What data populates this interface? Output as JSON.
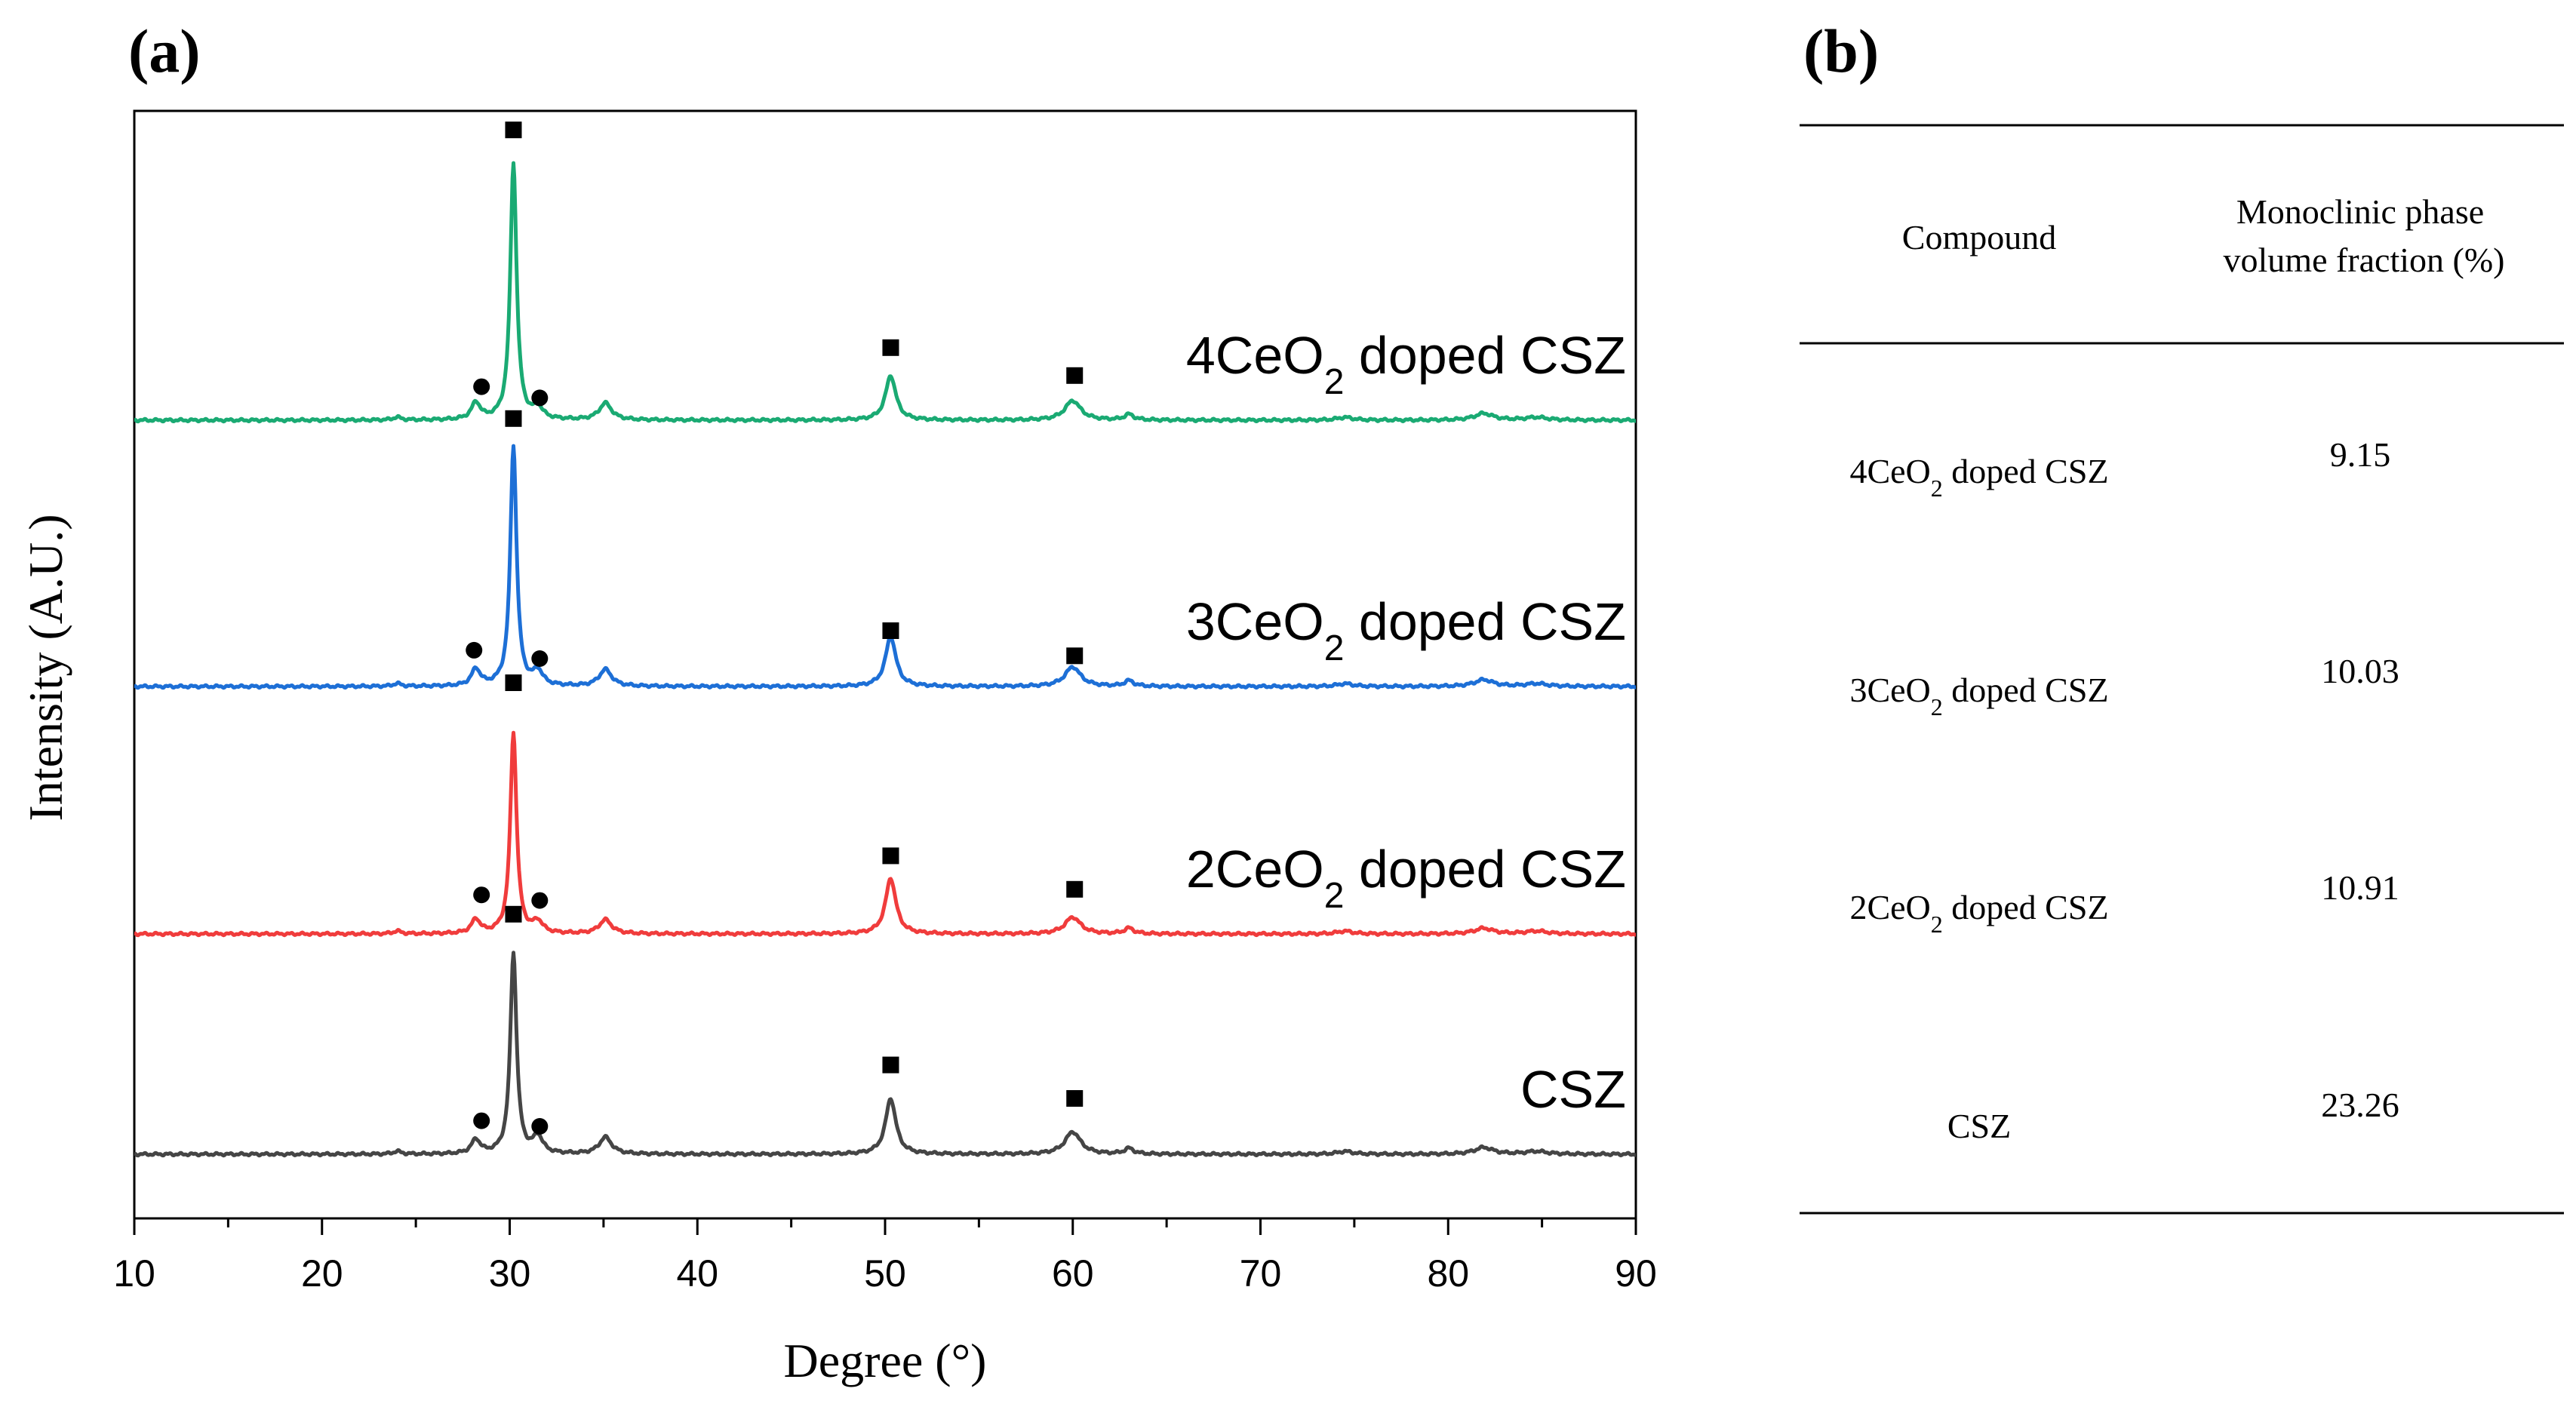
{
  "panel_a_label": "(a)",
  "panel_b_label": "(b)",
  "chart_data": {
    "type": "line",
    "xlabel": "Degree (°)",
    "ylabel": "Intensity (A.U.)",
    "xlim": [
      10,
      90
    ],
    "xticks": [
      "10",
      "20",
      "30",
      "40",
      "50",
      "60",
      "70",
      "80",
      "90"
    ],
    "y_ticks_shown": false,
    "peaks": [
      {
        "pos": 28.2,
        "w": 0.28,
        "k": "m"
      },
      {
        "pos": 30.2,
        "w": 0.2,
        "k": "main"
      },
      {
        "pos": 31.5,
        "w": 0.3,
        "k": "m2"
      },
      {
        "pos": 35.1,
        "w": 0.4,
        "k": "p35"
      },
      {
        "pos": 50.3,
        "w": 0.33,
        "k": "p50"
      },
      {
        "pos": 60.0,
        "w": 0.5,
        "k": "p60"
      },
      {
        "pos": 63.0,
        "w": 0.3,
        "k": "p63"
      },
      {
        "pos": 81.9,
        "w": 0.6,
        "k": "p82"
      },
      {
        "pos": 24.0,
        "w": 0.25,
        "k": "p24"
      },
      {
        "pos": 74.5,
        "w": 0.5,
        "k": "p74"
      },
      {
        "pos": 84.7,
        "w": 0.7,
        "k": "p85"
      }
    ],
    "series": [
      {
        "name": "4CeO2 doped CSZ",
        "label_main": "4CeO",
        "label_sub": "2",
        "label_rest": " doped CSZ",
        "color": "#1aaa73",
        "baseline": 0.7,
        "heights": {
          "m": 0.3,
          "main": 4.6,
          "m2": 0.2,
          "p35": 0.3,
          "p50": 0.8,
          "p60": 0.35,
          "p63": 0.1,
          "p82": 0.12,
          "p24": 0.05,
          "p74": 0.05,
          "p85": 0.05
        },
        "markers": [
          {
            "shape": "circle",
            "x": 28.5,
            "y_above": 0.6
          },
          {
            "shape": "square",
            "x": 30.2,
            "y_above": 5.2
          },
          {
            "shape": "circle",
            "x": 31.6,
            "y_above": 0.4
          },
          {
            "shape": "square",
            "x": 50.3,
            "y_above": 1.3
          },
          {
            "shape": "square",
            "x": 60.1,
            "y_above": 0.8
          }
        ]
      },
      {
        "name": "3CeO2 doped CSZ",
        "label_main": "3CeO",
        "label_sub": "2",
        "label_rest": " doped CSZ",
        "color": "#1d6fd6",
        "baseline": 0.7,
        "heights": {
          "m": 0.3,
          "main": 4.3,
          "m2": 0.25,
          "p35": 0.3,
          "p50": 0.9,
          "p60": 0.35,
          "p63": 0.1,
          "p82": 0.12,
          "p24": 0.05,
          "p74": 0.05,
          "p85": 0.05
        },
        "markers": [
          {
            "shape": "circle",
            "x": 28.1,
            "y_above": 0.65
          },
          {
            "shape": "square",
            "x": 30.2,
            "y_above": 4.8
          },
          {
            "shape": "circle",
            "x": 31.6,
            "y_above": 0.5
          },
          {
            "shape": "square",
            "x": 50.3,
            "y_above": 1.0
          },
          {
            "shape": "square",
            "x": 60.1,
            "y_above": 0.55
          }
        ]
      },
      {
        "name": "2CeO2 doped CSZ",
        "label_main": "2CeO",
        "label_sub": "2",
        "label_rest": " doped CSZ",
        "color": "#f03c3c",
        "baseline": 0.7,
        "heights": {
          "m": 0.25,
          "main": 3.6,
          "m2": 0.2,
          "p35": 0.25,
          "p50": 1.0,
          "p60": 0.3,
          "p63": 0.1,
          "p82": 0.1,
          "p24": 0.05,
          "p74": 0.05,
          "p85": 0.05
        },
        "markers": [
          {
            "shape": "circle",
            "x": 28.5,
            "y_above": 0.7
          },
          {
            "shape": "square",
            "x": 30.2,
            "y_above": 4.5
          },
          {
            "shape": "circle",
            "x": 31.6,
            "y_above": 0.6
          },
          {
            "shape": "square",
            "x": 50.3,
            "y_above": 1.4
          },
          {
            "shape": "square",
            "x": 60.1,
            "y_above": 0.8
          }
        ]
      },
      {
        "name": "CSZ",
        "label_main": "CSZ",
        "label_sub": "",
        "label_rest": "",
        "color": "#454545",
        "baseline": 0.7,
        "heights": {
          "m": 0.25,
          "main": 3.6,
          "m2": 0.3,
          "p35": 0.3,
          "p50": 1.0,
          "p60": 0.4,
          "p63": 0.1,
          "p82": 0.12,
          "p24": 0.05,
          "p74": 0.05,
          "p85": 0.05
        },
        "markers": [
          {
            "shape": "circle",
            "x": 28.5,
            "y_above": 0.6
          },
          {
            "shape": "square",
            "x": 30.2,
            "y_above": 4.3
          },
          {
            "shape": "circle",
            "x": 31.6,
            "y_above": 0.5
          },
          {
            "shape": "square",
            "x": 50.3,
            "y_above": 1.6
          },
          {
            "shape": "square",
            "x": 60.1,
            "y_above": 1.0
          }
        ]
      }
    ]
  },
  "table": {
    "header_col1": "Compound",
    "header_col2_line1": "Monoclinic phase",
    "header_col2_line2": "volume fraction (%)",
    "rows": [
      {
        "compound_main": "4CeO",
        "compound_sub": "2",
        "compound_rest": " doped CSZ",
        "value": "9.15"
      },
      {
        "compound_main": "3CeO",
        "compound_sub": "2",
        "compound_rest": " doped CSZ",
        "value": "10.03"
      },
      {
        "compound_main": "2CeO",
        "compound_sub": "2",
        "compound_rest": " doped CSZ",
        "value": "10.91"
      },
      {
        "compound_main": "CSZ",
        "compound_sub": "",
        "compound_rest": "",
        "value": "23.26"
      }
    ]
  }
}
